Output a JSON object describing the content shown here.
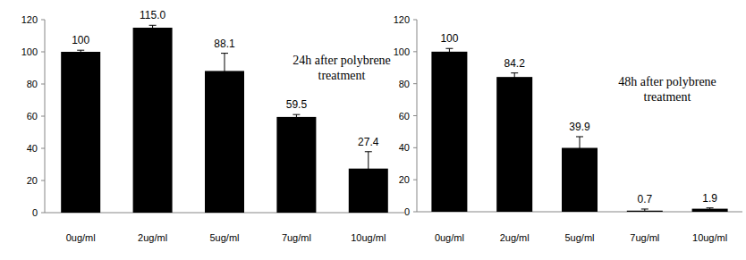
{
  "chart_data": [
    {
      "type": "bar",
      "annotation": [
        "24h after polybrene",
        "treatment"
      ],
      "categories": [
        "0ug/ml",
        "2ug/ml",
        "5ug/ml",
        "7ug/ml",
        "10ug/ml"
      ],
      "values": [
        100,
        115.0,
        88.1,
        59.5,
        27.4
      ],
      "value_labels": [
        "100",
        "115.0",
        "88.1",
        "59.5",
        "27.4"
      ],
      "errors": [
        1,
        1.5,
        11,
        1.5,
        10.5
      ],
      "color": "#000000",
      "ylim": [
        0,
        120
      ],
      "yticks": [
        0,
        20,
        40,
        60,
        80,
        100,
        120
      ],
      "grid": false,
      "data_labels": true
    },
    {
      "type": "bar",
      "annotation": [
        "48h after polybrene",
        "treatment"
      ],
      "categories": [
        "0ug/ml",
        "2ug/ml",
        "5ug/ml",
        "7ug/ml",
        "10ug/ml"
      ],
      "values": [
        100,
        84.2,
        39.9,
        0.7,
        1.9
      ],
      "value_labels": [
        "100",
        "84.2",
        "39.9",
        "0.7",
        "1.9"
      ],
      "errors": [
        2,
        2.5,
        7,
        1,
        0.5
      ],
      "color": "#000000",
      "ylim": [
        0,
        120
      ],
      "yticks": [
        0,
        20,
        40,
        60,
        80,
        100,
        120
      ],
      "grid": false,
      "data_labels": true
    }
  ]
}
